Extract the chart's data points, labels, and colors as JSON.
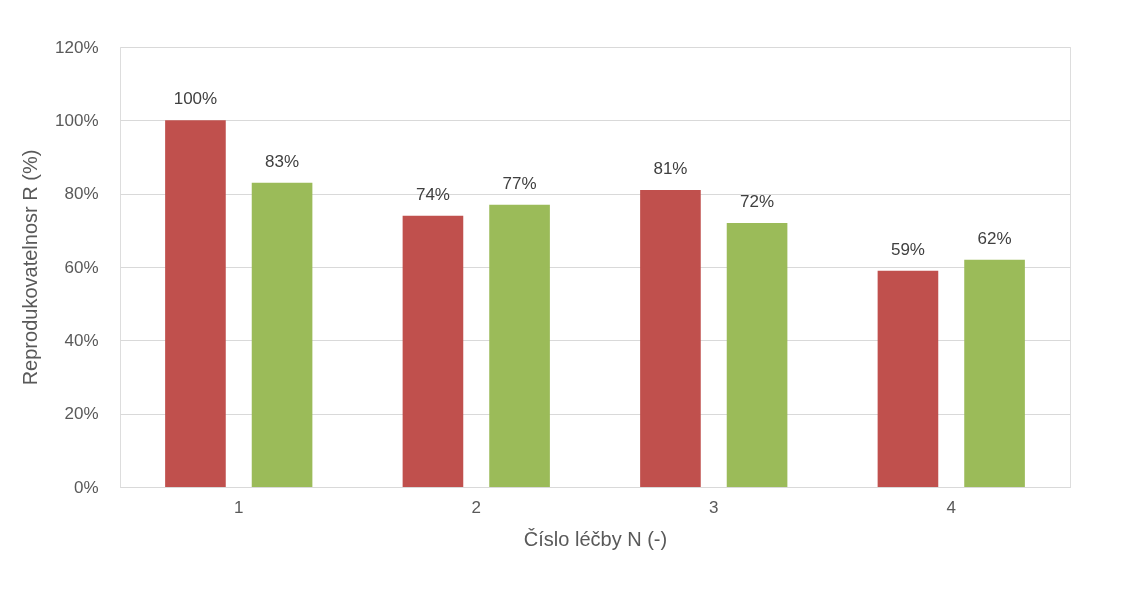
{
  "chart_data": {
    "type": "bar",
    "xlabel": "Číslo léčby N (-)",
    "ylabel": "Reprodukovatelnosr R (%)",
    "categories": [
      "1",
      "2",
      "3",
      "4"
    ],
    "series": [
      {
        "color": "#c0504d",
        "values": [
          100,
          74,
          81,
          59
        ],
        "value_labels": [
          "100%",
          "74%",
          "81%",
          "59%"
        ]
      },
      {
        "color": "#9bbb59",
        "values": [
          83,
          77,
          72,
          62
        ],
        "value_labels": [
          "83%",
          "77%",
          "72%",
          "62%"
        ]
      }
    ],
    "ylim": [
      0,
      120
    ],
    "yticks": [
      {
        "value": 0,
        "label": "0%"
      },
      {
        "value": 20,
        "label": "20%"
      },
      {
        "value": 40,
        "label": "40%"
      },
      {
        "value": 60,
        "label": "60%"
      },
      {
        "value": 80,
        "label": "80%"
      },
      {
        "value": 100,
        "label": "100%"
      },
      {
        "value": 120,
        "label": "120%"
      }
    ],
    "grid": "y",
    "legend": false
  }
}
